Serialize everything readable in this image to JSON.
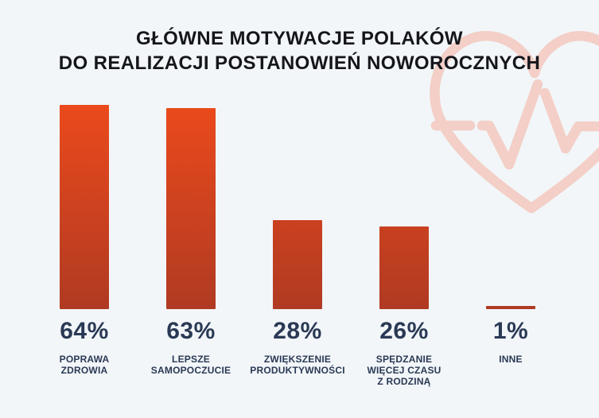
{
  "colors": {
    "background": "#f2f6f9",
    "bar_gradient_top": "#eb4a1c",
    "bar_gradient_bottom": "#b03a22",
    "title_text": "#15161b",
    "value_text": "#2a3954",
    "label_text": "#2a3954",
    "watermark": "#f3cfc7"
  },
  "title": {
    "line1": "GŁÓWNE MOTYWACJE POLAKÓW",
    "line2": "DO REALIZACJI POSTANOWIEŃ NOWOROCZNYCH"
  },
  "chart_data": {
    "type": "bar",
    "title": "GŁÓWNE MOTYWACJE POLAKÓW DO REALIZACJI POSTANOWIEŃ NOWOROCZNYCH",
    "categories": [
      "POPRAWA ZDROWIA",
      "LEPSZE SAMOPOCZUCIE",
      "ZWIĘKSZENIE PRODUKTYWNOŚCI",
      "SPĘDZANIE WIĘCEJ CZASU Z RODZINĄ",
      "INNE"
    ],
    "category_display": [
      "POPRAWA\nZDROWIA",
      "LEPSZE\nSAMOPOCZUCIE",
      "ZWIĘKSZENIE\nPRODUKTYWNOŚCI",
      "SPĘDZANIE\nWIĘCEJ CZASU\nZ RODZINĄ",
      "INNE"
    ],
    "values": [
      64,
      63,
      28,
      26,
      1
    ],
    "value_labels": [
      "64%",
      "63%",
      "28%",
      "26%",
      "1%"
    ],
    "unit": "%",
    "ylim": [
      0,
      64
    ],
    "grid": false,
    "axes_visible": false,
    "legend": "none",
    "watermark_icon": "heart-with-ecg-pulse-line"
  }
}
